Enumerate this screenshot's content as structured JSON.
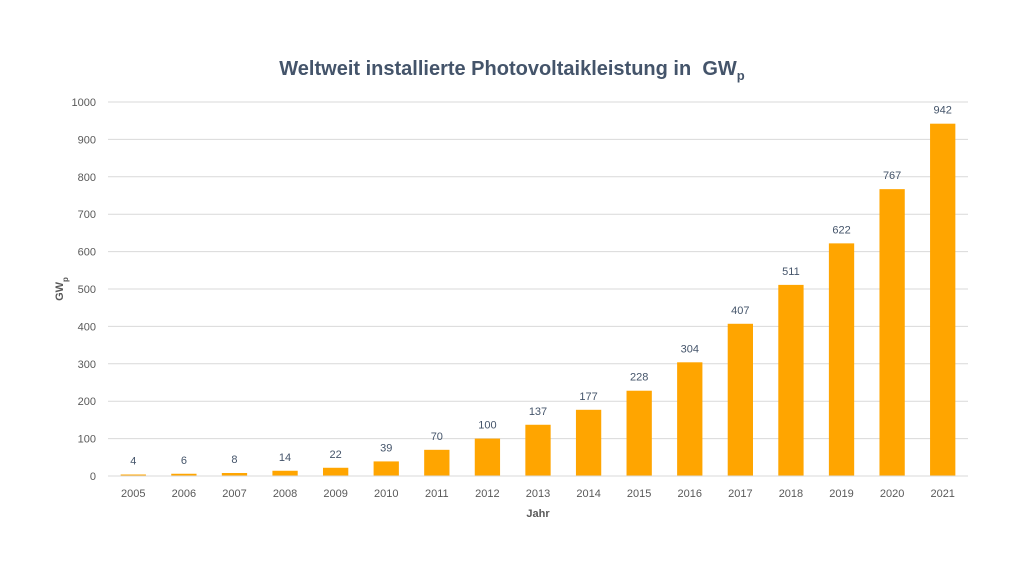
{
  "chart_data": {
    "type": "bar",
    "title_main": "Weltweit installierte Photovoltaikleistung in",
    "title_unit": "GW",
    "title_unit_sub": "p",
    "xlabel": "Jahr",
    "ylabel_main": "GW",
    "ylabel_sub": "p",
    "categories": [
      "2005",
      "2006",
      "2007",
      "2008",
      "2009",
      "2010",
      "2011",
      "2012",
      "2013",
      "2014",
      "2015",
      "2016",
      "2017",
      "2018",
      "2019",
      "2020",
      "2021"
    ],
    "values": [
      4,
      6,
      8,
      14,
      22,
      39,
      70,
      100,
      137,
      177,
      228,
      304,
      407,
      511,
      622,
      767,
      942
    ],
    "ylim": [
      0,
      1000
    ],
    "yticks": [
      0,
      100,
      200,
      300,
      400,
      500,
      600,
      700,
      800,
      900,
      1000
    ],
    "grid": true,
    "bar_color": "#ffa500"
  }
}
